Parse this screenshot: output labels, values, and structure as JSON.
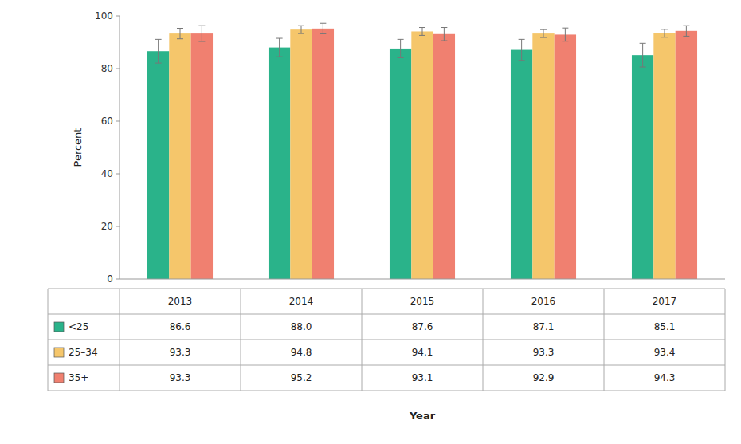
{
  "chart_data": {
    "type": "bar",
    "categories": [
      "2013",
      "2014",
      "2015",
      "2016",
      "2017"
    ],
    "series": [
      {
        "name": "<25",
        "color": "#2ab38a",
        "values": [
          86.6,
          88.0,
          87.6,
          87.1,
          85.1
        ],
        "errors": [
          4.5,
          3.5,
          3.5,
          4.0,
          4.5
        ],
        "value_labels": [
          "86.6",
          "88.0",
          "87.6",
          "87.1",
          "85.1"
        ]
      },
      {
        "name": "25–34",
        "color": "#f5c66b",
        "values": [
          93.3,
          94.8,
          94.1,
          93.3,
          93.4
        ],
        "errors": [
          2.0,
          1.5,
          1.5,
          1.5,
          1.5
        ],
        "value_labels": [
          "93.3",
          "94.8",
          "94.1",
          "93.3",
          "93.4"
        ]
      },
      {
        "name": "35+",
        "color": "#f08070",
        "values": [
          93.3,
          95.2,
          93.1,
          92.9,
          94.3
        ],
        "errors": [
          3.0,
          2.0,
          2.5,
          2.5,
          2.0
        ],
        "value_labels": [
          "93.3",
          "95.2",
          "93.1",
          "92.9",
          "94.3"
        ]
      }
    ],
    "ylabel": "Percent",
    "xlabel": "Year",
    "ylim": [
      0,
      100
    ],
    "yticks": [
      0,
      20,
      40,
      60,
      80,
      100
    ],
    "grid": false
  }
}
